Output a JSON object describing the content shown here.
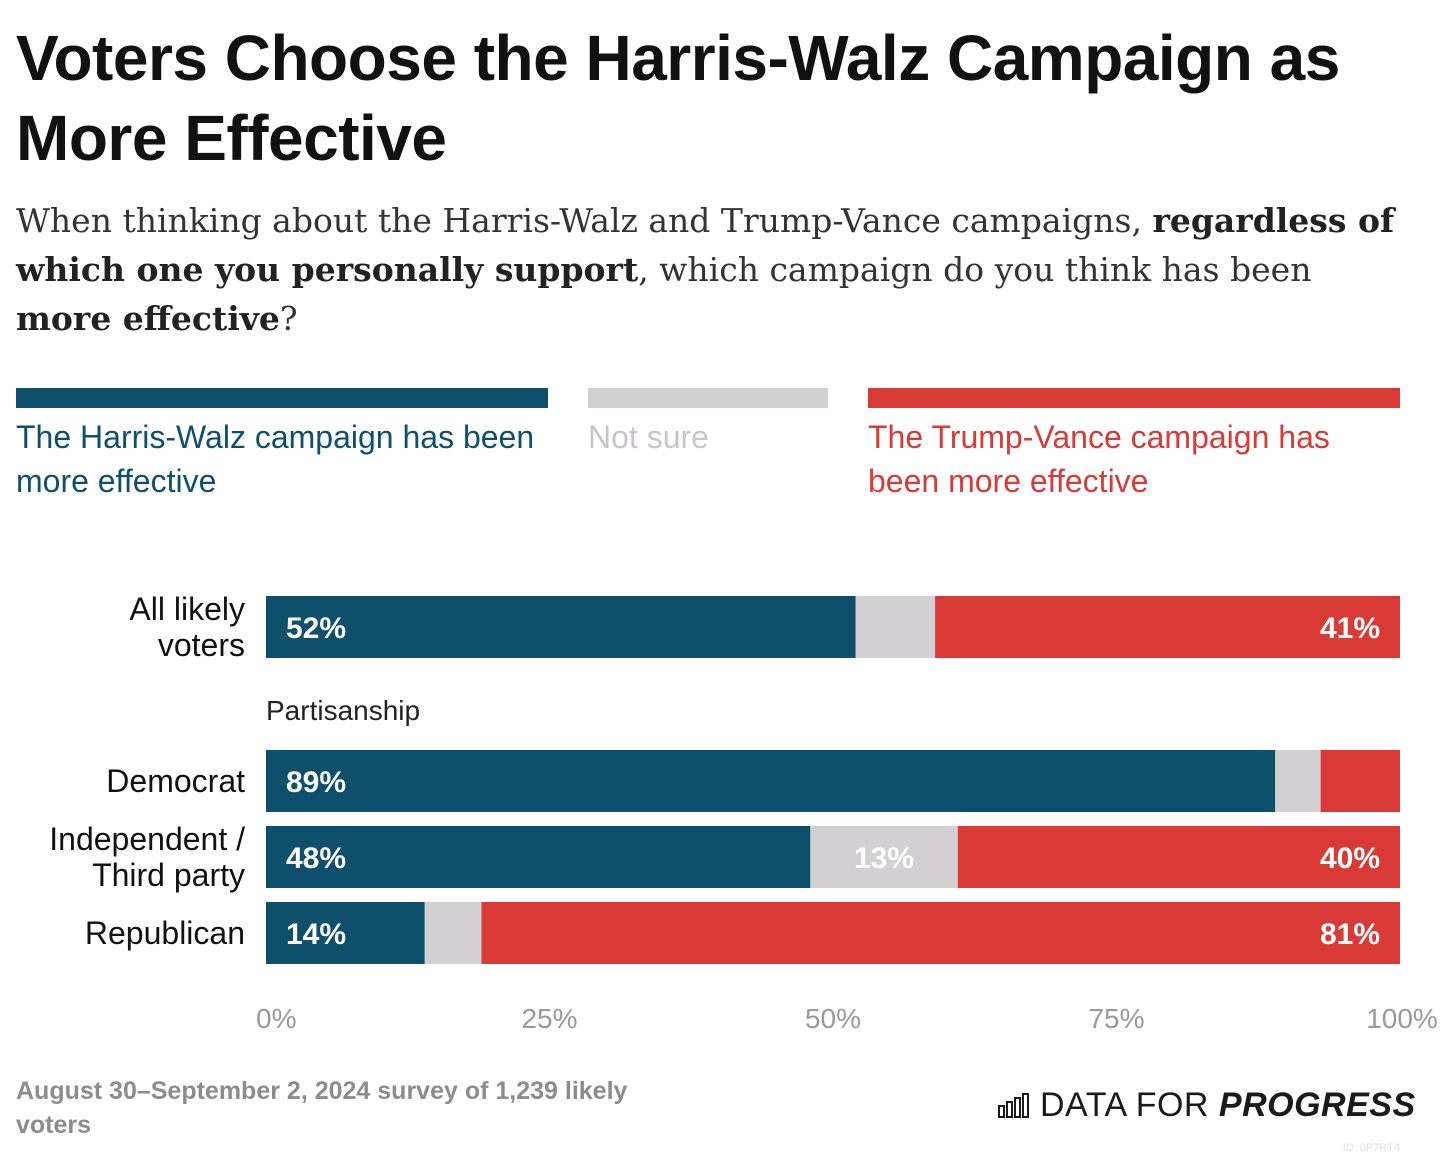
{
  "title": "Voters Choose the Harris-Walz Campaign as More Effective",
  "subtitle": {
    "part1": "When thinking about the Harris-Walz and Trump-Vance campaigns, ",
    "bold1": "regardless of which one you personally support",
    "part2": ", which campaign do you think has been ",
    "bold2": "more effective",
    "part3": "?"
  },
  "colors": {
    "harris": "#0e4f6b",
    "not_sure": "#d3d0d3",
    "trump": "#d93a35",
    "axis_text": "#999999"
  },
  "chart_data": {
    "type": "bar",
    "orientation": "horizontal",
    "stacked": true,
    "xlim": [
      0,
      100
    ],
    "x_ticks": [
      "0%",
      "25%",
      "50%",
      "75%",
      "100%"
    ],
    "legend_position": "top",
    "series": [
      {
        "name": "The Harris-Walz campaign has been more effective",
        "key": "harris"
      },
      {
        "name": "Not sure",
        "key": "not_sure"
      },
      {
        "name": "The Trump-Vance campaign has been more effective",
        "key": "trump"
      }
    ],
    "group_label": "Partisanship",
    "categories": [
      {
        "label": "All likely voters",
        "values": [
          52,
          7,
          41
        ],
        "labels": [
          "52%",
          "",
          "41%"
        ]
      },
      {
        "label": "Democrat",
        "values": [
          89,
          4,
          7
        ],
        "labels": [
          "89%",
          "",
          ""
        ]
      },
      {
        "label": "Independent / Third party",
        "values": [
          48,
          13,
          40
        ],
        "labels": [
          "48%",
          "13%",
          "40%"
        ]
      },
      {
        "label": "Republican",
        "values": [
          14,
          5,
          81
        ],
        "labels": [
          "14%",
          "",
          "81%"
        ]
      }
    ]
  },
  "footer": {
    "note": "August 30–September 2, 2024 survey of 1,239 likely voters",
    "logo_normal": "DATA FOR ",
    "logo_bold": "PROGRESS",
    "logo_icon": "bar-chart-logo-icon",
    "id": "ID: 6P7RT4"
  }
}
